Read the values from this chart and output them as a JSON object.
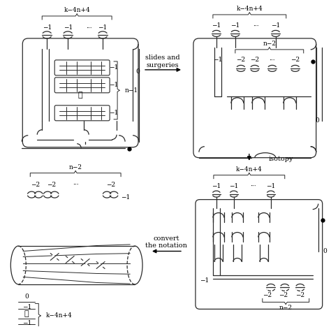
{
  "bg_color": "#ffffff",
  "lc": "#2a2a2a",
  "tc": "#000000",
  "figsize": [
    4.74,
    4.68
  ],
  "dpi": 100,
  "labels": {
    "k4n4": "k−4n+4",
    "n2": "n−2",
    "n1": "n−1",
    "m1": "−1",
    "m2": "−2",
    "dots": "···",
    "vdots": "⋮",
    "zero": "0",
    "slides": "slides and\nsurgeries",
    "isotopy": "isotopy",
    "convert": "convert\nthe notation"
  }
}
